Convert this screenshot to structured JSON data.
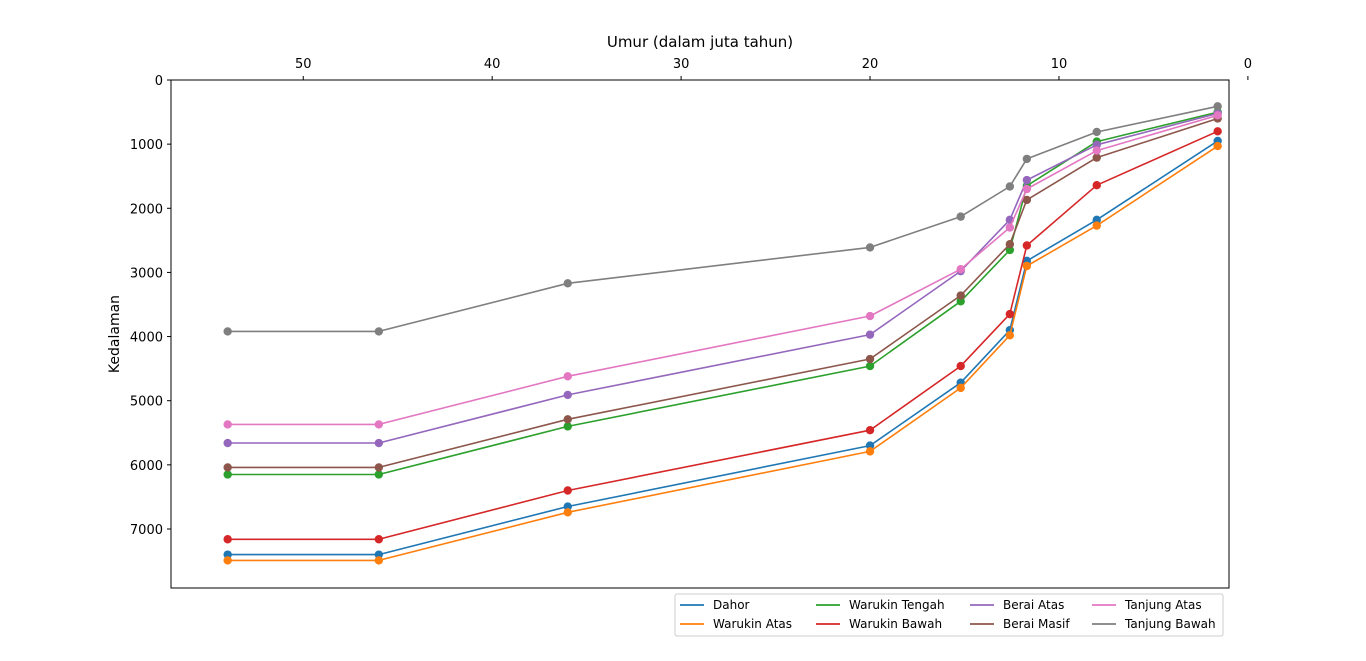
{
  "chart_data": {
    "type": "line",
    "title": "",
    "xlabel": "Umur (dalam juta tahun)",
    "ylabel": "Kedalaman",
    "x_axis_position": "top",
    "x_reversed": true,
    "y_reversed": true,
    "xlim": [
      57,
      1
    ],
    "ylim": [
      0,
      7920
    ],
    "x_ticks": [
      50,
      40,
      30,
      20,
      10,
      0
    ],
    "y_ticks": [
      0,
      1000,
      2000,
      3000,
      4000,
      5000,
      6000,
      7000
    ],
    "grid": false,
    "legend_placement": "bottom-right, below plot, 4 columns",
    "markers": "circle",
    "x": [
      54,
      46,
      36,
      20,
      15.2,
      12.6,
      11.7,
      8,
      1.6
    ],
    "series": [
      {
        "name": "Dahor",
        "color": "#1f77b4",
        "values": [
          7400,
          7400,
          6650,
          5700,
          4720,
          3900,
          2820,
          2180,
          950
        ]
      },
      {
        "name": "Warukin Atas",
        "color": "#ff7f0e",
        "values": [
          7490,
          7490,
          6740,
          5790,
          4800,
          3980,
          2900,
          2270,
          1030
        ]
      },
      {
        "name": "Warukin Tengah",
        "color": "#2ca02c",
        "values": [
          6150,
          6150,
          5400,
          4460,
          3450,
          2650,
          1650,
          960,
          500
        ]
      },
      {
        "name": "Warukin Bawah",
        "color": "#d62728",
        "values": [
          7160,
          7160,
          6400,
          5460,
          4460,
          3650,
          2580,
          1640,
          800
        ]
      },
      {
        "name": "Berai Atas",
        "color": "#9467bd",
        "values": [
          5660,
          5660,
          4910,
          3970,
          2980,
          2180,
          1560,
          1010,
          520
        ]
      },
      {
        "name": "Berai Masif",
        "color": "#8c564b",
        "values": [
          6040,
          6040,
          5290,
          4350,
          3360,
          2560,
          1870,
          1210,
          600
        ]
      },
      {
        "name": "Tanjung Atas",
        "color": "#e377c2",
        "values": [
          5370,
          5370,
          4620,
          3680,
          2950,
          2300,
          1700,
          1100,
          550
        ]
      },
      {
        "name": "Tanjung Bawah",
        "color": "#7f7f7f",
        "values": [
          3920,
          3920,
          3170,
          2610,
          2130,
          1660,
          1230,
          810,
          410
        ]
      }
    ]
  }
}
